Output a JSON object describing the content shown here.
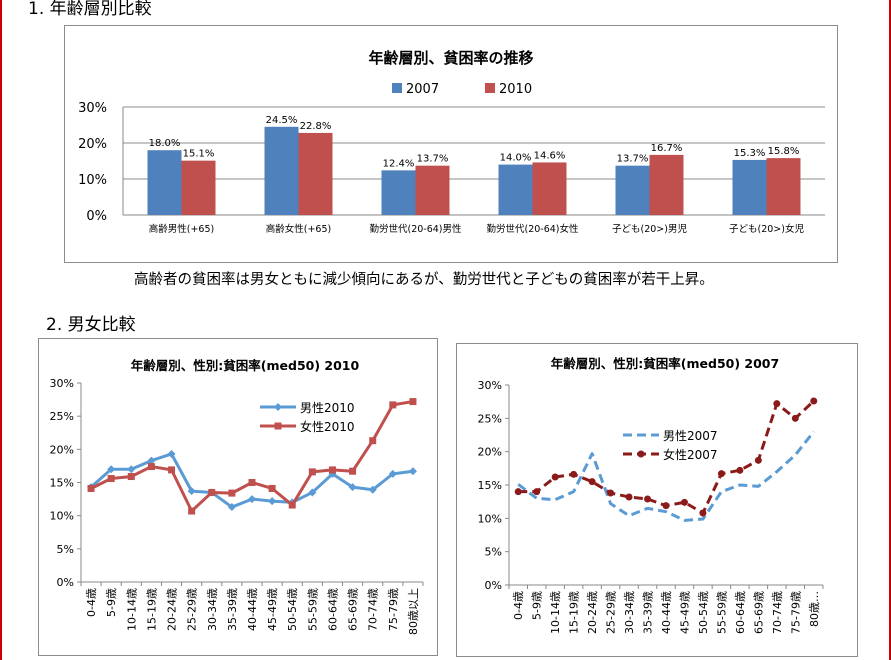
{
  "sections": {
    "s1_title": "1. 年齢層別比較",
    "s2_title": "2. 男女比較"
  },
  "comment": "高齢者の貧困率は男女ともに減少傾向にあるが、勤労世代と子どもの貧困率が若干上昇。",
  "colors": {
    "blue": "#4f81bd",
    "red": "#c0504d",
    "darkred": "#8b1a1a",
    "lightblue": "#5b9bd5"
  },
  "chart_data": [
    {
      "type": "bar",
      "title": "年齢層別、貧困率の推移",
      "categories": [
        "高齢男性(+65)",
        "高齢女性(+65)",
        "勤労世代(20-64)男性",
        "勤労世代(20-64)女性",
        "子ども(20>)男児",
        "子ども(20>)女児"
      ],
      "series": [
        {
          "name": "2007",
          "values": [
            18.0,
            24.5,
            12.4,
            14.0,
            13.7,
            15.3
          ],
          "labels": [
            "18.0%",
            "24.5%",
            "12.4%",
            "14.0%",
            "13.7%",
            "15.3%"
          ]
        },
        {
          "name": "2010",
          "values": [
            15.1,
            22.8,
            13.7,
            14.6,
            16.7,
            15.8
          ],
          "labels": [
            "15.1%",
            "22.8%",
            "13.7%",
            "14.6%",
            "16.7%",
            "15.8%"
          ]
        }
      ],
      "yticks": [
        "0%",
        "10%",
        "20%",
        "30%"
      ],
      "ylim": [
        0,
        30
      ],
      "grid": true,
      "legend": "top"
    },
    {
      "type": "line",
      "title": "年齢層別、性別:貧困率(med50) 2010",
      "categories": [
        "0-4歳",
        "5-9歳",
        "10-14歳",
        "15-19歳",
        "20-24歳",
        "25-29歳",
        "30-34歳",
        "35-39歳",
        "40-44歳",
        "45-49歳",
        "50-54歳",
        "55-59歳",
        "60-64歳",
        "65-69歳",
        "70-74歳",
        "75-79歳",
        "80歳以上"
      ],
      "series": [
        {
          "name": "男性2010",
          "values": [
            14.3,
            17.0,
            17.0,
            18.3,
            19.3,
            13.7,
            13.5,
            11.3,
            12.5,
            12.2,
            12.0,
            13.5,
            16.3,
            14.3,
            13.9,
            16.3,
            16.7
          ]
        },
        {
          "name": "女性2010",
          "values": [
            14.1,
            15.6,
            15.9,
            17.4,
            16.9,
            10.7,
            13.5,
            13.4,
            15.0,
            14.1,
            11.6,
            16.6,
            16.9,
            16.7,
            21.3,
            26.7,
            27.2
          ]
        }
      ],
      "yticks": [
        "0%",
        "5%",
        "10%",
        "15%",
        "20%",
        "25%",
        "30%"
      ],
      "ylim": [
        0,
        30
      ],
      "grid": false,
      "legend": "right"
    },
    {
      "type": "line",
      "title": "年齢層別、性別:貧困率(med50) 2007",
      "categories": [
        "0-4歳",
        "5-9歳",
        "10-14歳",
        "15-19歳",
        "20-24歳",
        "25-29歳",
        "30-34歳",
        "35-39歳",
        "40-44歳",
        "45-49歳",
        "50-54歳",
        "55-59歳",
        "60-64歳",
        "65-69歳",
        "70-74歳",
        "75-79歳",
        "80歳…"
      ],
      "series": [
        {
          "name": "男性2007",
          "values": [
            15.1,
            13.0,
            12.8,
            14.0,
            19.7,
            12.2,
            10.4,
            11.5,
            11.0,
            9.7,
            9.9,
            14.0,
            15.0,
            14.8,
            17.0,
            19.5,
            23.0
          ]
        },
        {
          "name": "女性2007",
          "values": [
            14.0,
            14.0,
            16.2,
            16.6,
            15.5,
            13.8,
            13.2,
            12.9,
            11.9,
            12.4,
            10.8,
            16.7,
            17.2,
            18.7,
            27.2,
            25.0,
            27.6
          ]
        }
      ],
      "yticks": [
        "0%",
        "5%",
        "10%",
        "15%",
        "20%",
        "25%",
        "30%"
      ],
      "ylim": [
        0,
        30
      ],
      "grid": false,
      "legend": "left"
    }
  ]
}
